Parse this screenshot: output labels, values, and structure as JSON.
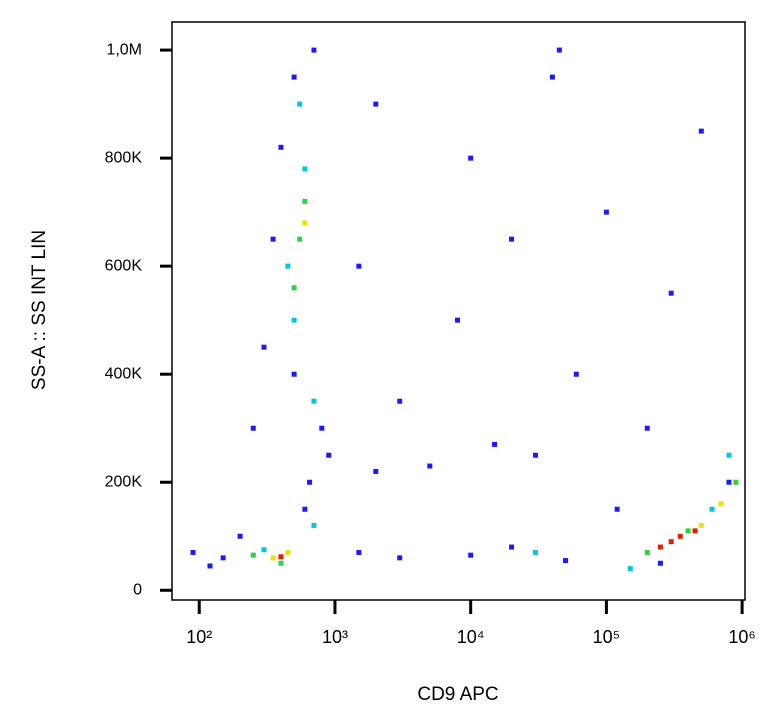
{
  "chart_data": {
    "type": "scatter",
    "x_label": "CD9 APC",
    "y_label": "SS-A :: SS INT LIN",
    "xscale": "log",
    "xlim": [
      63,
      1050000
    ],
    "ylim": [
      -18000,
      1052000
    ],
    "xticks": [
      {
        "value": 100,
        "label": "10²"
      },
      {
        "value": 1000,
        "label": "10³"
      },
      {
        "value": 10000,
        "label": "10⁴"
      },
      {
        "value": 100000,
        "label": "10⁵"
      },
      {
        "value": 1000000,
        "label": "10⁶"
      }
    ],
    "yticks": [
      0,
      {
        "value": 200000,
        "label": "200K"
      },
      {
        "value": 400000,
        "label": "400K"
      },
      {
        "value": 600000,
        "label": "600K"
      },
      {
        "value": 800000,
        "label": "800K"
      },
      {
        "value": 1000000,
        "label": "1,0M"
      }
    ],
    "series": [
      {
        "color": "#1a1aff",
        "x": [
          150,
          120,
          90,
          250,
          300,
          350,
          400,
          500,
          700,
          800,
          900,
          1500,
          2000,
          3000,
          5000,
          8000,
          10000,
          20000,
          30000,
          40000,
          45000,
          60000,
          100000,
          200000,
          300000,
          500000,
          800000,
          1500,
          3000,
          10000,
          20000,
          50000,
          200,
          600,
          650,
          500,
          2000,
          15000,
          120000,
          250000
        ],
        "y": [
          60000,
          45000,
          70000,
          300000,
          450000,
          650000,
          820000,
          950000,
          1000000,
          300000,
          250000,
          600000,
          900000,
          350000,
          230000,
          500000,
          800000,
          650000,
          250000,
          950000,
          1000000,
          400000,
          700000,
          300000,
          550000,
          850000,
          200000,
          70000,
          60000,
          65000,
          80000,
          55000,
          100000,
          150000,
          200000,
          400000,
          220000,
          270000,
          150000,
          50000
        ]
      },
      {
        "color": "#00c8e0",
        "x": [
          500,
          450,
          600,
          700,
          550,
          300,
          30000,
          800000,
          600000,
          150000,
          700
        ],
        "y": [
          500000,
          600000,
          780000,
          350000,
          900000,
          75000,
          70000,
          250000,
          150000,
          40000,
          120000
        ]
      },
      {
        "color": "#30d040",
        "x": [
          550,
          600,
          500,
          250,
          400,
          900000,
          400000,
          200000
        ],
        "y": [
          650000,
          720000,
          560000,
          65000,
          50000,
          200000,
          110000,
          70000
        ]
      },
      {
        "color": "#f0e000",
        "x": [
          600,
          350,
          450,
          500000,
          700000
        ],
        "y": [
          680000,
          60000,
          70000,
          120000,
          160000
        ]
      },
      {
        "color": "#e02000",
        "x": [
          400,
          300000,
          350000,
          250000,
          450000
        ],
        "y": [
          62000,
          90000,
          100000,
          80000,
          110000
        ]
      }
    ]
  }
}
